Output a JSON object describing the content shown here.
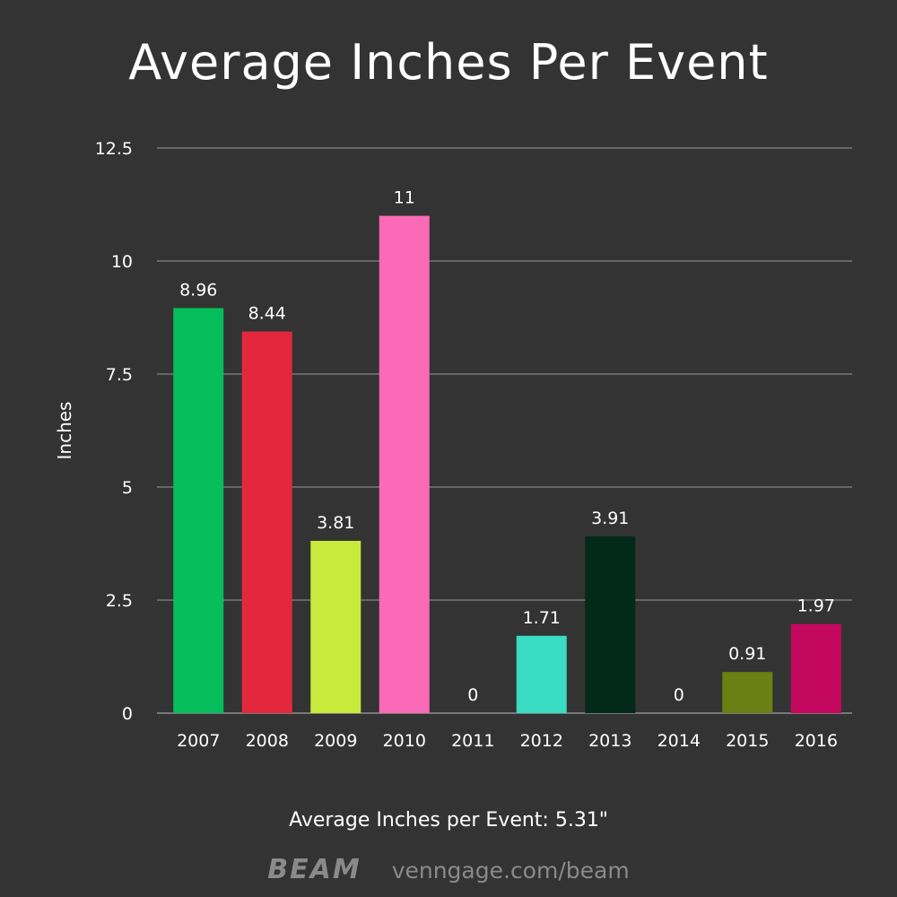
{
  "chart_data": {
    "type": "bar",
    "title": "Average Inches Per Event",
    "ylabel": "Inches",
    "xlabel": "",
    "categories": [
      "2007",
      "2008",
      "2009",
      "2010",
      "2011",
      "2012",
      "2013",
      "2014",
      "2015",
      "2016"
    ],
    "values": [
      8.96,
      8.44,
      3.81,
      11,
      0,
      1.71,
      3.91,
      0,
      0.91,
      1.97
    ],
    "value_labels": [
      "8.96",
      "8.44",
      "3.81",
      "11",
      "0",
      "1.71",
      "3.91",
      "0",
      "0.91",
      "1.97"
    ],
    "colors": [
      "#06bf5c",
      "#e3283d",
      "#c8eb3b",
      "#fb6ab6",
      "#333333",
      "#39dcc3",
      "#03291a",
      "#333333",
      "#6a8012",
      "#c4075f"
    ],
    "ylim": [
      0,
      12.5
    ],
    "yticks": [
      "0",
      "2.5",
      "5",
      "7.5",
      "10",
      "12.5"
    ],
    "ytick_values": [
      0,
      2.5,
      5,
      7.5,
      10,
      12.5
    ],
    "grid": true,
    "legend": "none"
  },
  "footer": {
    "note": "Average Inches per Event: 5.31\"",
    "brand": "BEAM",
    "url": "venngage.com/beam"
  },
  "colors": {
    "background": "#333333",
    "gridline": "#777777",
    "text": "#ffffff",
    "brand": "#8a8a8a"
  }
}
